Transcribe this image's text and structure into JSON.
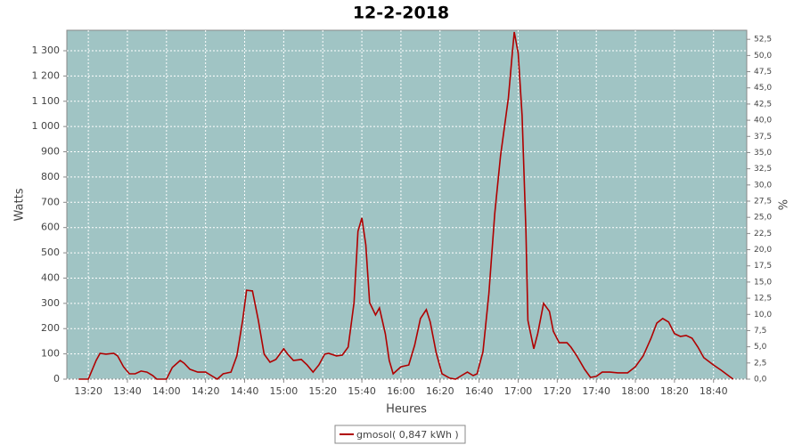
{
  "chart_data": {
    "type": "line",
    "title": "12-2-2018",
    "x_label": "Heures",
    "y_label": "Watts",
    "y2_label": "%",
    "x": [
      "13:15",
      "13:20",
      "13:24",
      "13:26",
      "13:29",
      "13:33",
      "13:35",
      "13:38",
      "13:41",
      "13:44",
      "13:47",
      "13:50",
      "13:53",
      "13:55",
      "14:00",
      "14:03",
      "14:07",
      "14:09",
      "14:12",
      "14:16",
      "14:20",
      "14:23",
      "14:26",
      "14:29",
      "14:33",
      "14:36",
      "14:39",
      "14:41",
      "14:44",
      "14:47",
      "14:50",
      "14:53",
      "14:56",
      "15:00",
      "15:02",
      "15:05",
      "15:09",
      "15:12",
      "15:15",
      "15:18",
      "15:21",
      "15:23",
      "15:27",
      "15:30",
      "15:33",
      "15:36",
      "15:38",
      "15:40",
      "15:42",
      "15:44",
      "15:47",
      "15:49",
      "15:52",
      "15:54",
      "15:56",
      "16:00",
      "16:04",
      "16:07",
      "16:10",
      "16:13",
      "16:15",
      "16:18",
      "16:21",
      "16:25",
      "16:28",
      "16:31",
      "16:34",
      "16:37",
      "16:39",
      "16:42",
      "16:45",
      "16:48",
      "16:51",
      "16:55",
      "16:57",
      "16:58",
      "17:00",
      "17:02",
      "17:04",
      "17:05",
      "17:08",
      "17:10",
      "17:13",
      "17:16",
      "17:18",
      "17:21",
      "17:25",
      "17:27",
      "17:30",
      "17:34",
      "17:37",
      "17:40",
      "17:43",
      "17:47",
      "17:51",
      "17:56",
      "18:00",
      "18:04",
      "18:08",
      "18:11",
      "18:14",
      "18:17",
      "18:20",
      "18:23",
      "18:26",
      "18:29",
      "18:32",
      "18:35",
      "18:40",
      "18:44",
      "18:50"
    ],
    "series": [
      {
        "name": "gmosol( 0,847 kWh )",
        "color": "#b00000",
        "values": [
          0,
          0,
          74,
          102,
          99,
          102,
          92,
          49,
          21,
          21,
          32,
          28,
          14,
          0,
          0,
          46,
          74,
          63,
          39,
          28,
          28,
          14,
          0,
          21,
          28,
          92,
          233,
          352,
          349,
          233,
          99,
          67,
          78,
          120,
          99,
          74,
          78,
          56,
          28,
          56,
          99,
          102,
          92,
          95,
          127,
          303,
          585,
          638,
          532,
          303,
          254,
          282,
          180,
          74,
          21,
          49,
          56,
          134,
          240,
          275,
          226,
          106,
          21,
          4,
          0,
          14,
          28,
          14,
          21,
          109,
          338,
          655,
          884,
          1113,
          1290,
          1374,
          1290,
          1043,
          585,
          233,
          120,
          180,
          300,
          268,
          190,
          144,
          144,
          127,
          92,
          39,
          7,
          11,
          28,
          28,
          25,
          25,
          49,
          92,
          162,
          222,
          240,
          226,
          180,
          169,
          173,
          162,
          127,
          85,
          56,
          35,
          0
        ]
      }
    ],
    "xlim": [
      "13:09",
      "18:57"
    ],
    "xticks": [
      "13:20",
      "13:40",
      "14:00",
      "14:20",
      "14:40",
      "15:00",
      "15:20",
      "15:40",
      "16:00",
      "16:20",
      "16:40",
      "17:00",
      "17:20",
      "17:40",
      "18:00",
      "18:20",
      "18:40"
    ],
    "ylim": [
      0,
      1381
    ],
    "yticks": [
      0,
      100,
      200,
      300,
      400,
      500,
      600,
      700,
      800,
      900,
      {
        "value": 1000,
        "label": "1 000"
      },
      {
        "value": 1100,
        "label": "1 100"
      },
      {
        "value": 1200,
        "label": "1 200"
      },
      {
        "value": 1300,
        "label": "1 300"
      }
    ],
    "y2lim": [
      0,
      53.9
    ],
    "y2ticks": [
      {
        "value": 0,
        "label": "0,0"
      },
      {
        "value": 2.5,
        "label": "2,5"
      },
      {
        "value": 5,
        "label": "5,0"
      },
      {
        "value": 7.5,
        "label": "7,5"
      },
      {
        "value": 10,
        "label": "10,0"
      },
      {
        "value": 12.5,
        "label": "12,5"
      },
      {
        "value": 15,
        "label": "15,0"
      },
      {
        "value": 17.5,
        "label": "17,5"
      },
      {
        "value": 20,
        "label": "20,0"
      },
      {
        "value": 22.5,
        "label": "22,5"
      },
      {
        "value": 25,
        "label": "25,0"
      },
      {
        "value": 27.5,
        "label": "27,5"
      },
      {
        "value": 30,
        "label": "30,0"
      },
      {
        "value": 32.5,
        "label": "32,5"
      },
      {
        "value": 35,
        "label": "35,0"
      },
      {
        "value": 37.5,
        "label": "37,5"
      },
      {
        "value": 40,
        "label": "40,0"
      },
      {
        "value": 42.5,
        "label": "42,5"
      },
      {
        "value": 45,
        "label": "45,0"
      },
      {
        "value": 47.5,
        "label": "47,5"
      },
      {
        "value": 50,
        "label": "50,0"
      },
      {
        "value": 52.5,
        "label": "52,5"
      }
    ],
    "grid": true,
    "background": "#a0c4c4"
  }
}
